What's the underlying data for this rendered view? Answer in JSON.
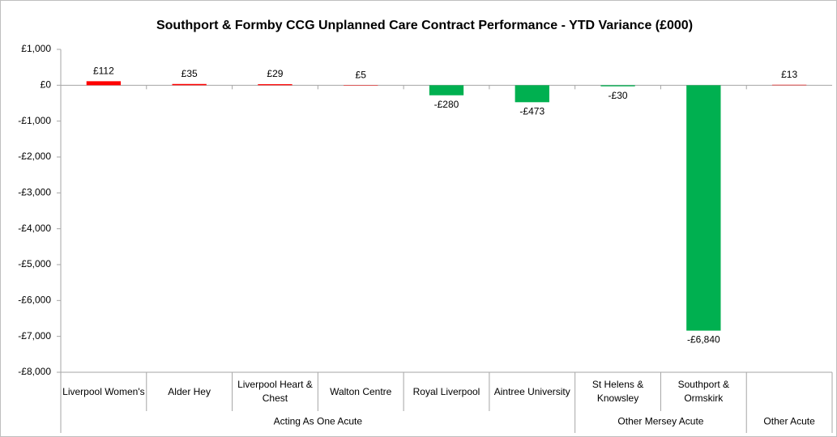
{
  "chart_data": {
    "type": "bar",
    "title": "Southport & Formby CCG Unplanned Care Contract Performance - YTD Variance (£000)",
    "categories": [
      "Liverpool Women's",
      "Alder Hey",
      "Liverpool Heart & Chest",
      "Walton Centre",
      "Royal Liverpool",
      "Aintree University",
      "St Helens & Knowsley",
      "Southport & Ormskirk",
      null
    ],
    "values": [
      112,
      35,
      29,
      5,
      -280,
      -473,
      -30,
      -6840,
      13
    ],
    "value_labels": [
      "£112",
      "£35",
      "£29",
      "£5",
      "-£280",
      "-£473",
      "-£30",
      "-£6,840",
      "£13"
    ],
    "positive_color": "#ff0000",
    "negative_color": "#00b050",
    "groups": [
      {
        "label": "Acting As One Acute",
        "size": 6
      },
      {
        "label": "Other Mersey Acute",
        "size": 2
      },
      {
        "label": "Other Acute",
        "size": 1
      }
    ],
    "ylim": [
      -8000,
      1000
    ],
    "yticks": [
      {
        "value": 1000,
        "label": "£1,000"
      },
      {
        "value": 0,
        "label": "£0"
      },
      {
        "value": -1000,
        "label": "-£1,000"
      },
      {
        "value": -2000,
        "label": "-£2,000"
      },
      {
        "value": -3000,
        "label": "-£3,000"
      },
      {
        "value": -4000,
        "label": "-£4,000"
      },
      {
        "value": -5000,
        "label": "-£5,000"
      },
      {
        "value": -6000,
        "label": "-£6,000"
      },
      {
        "value": -7000,
        "label": "-£7,000"
      },
      {
        "value": -8000,
        "label": "-£8,000"
      }
    ],
    "grid": false
  }
}
